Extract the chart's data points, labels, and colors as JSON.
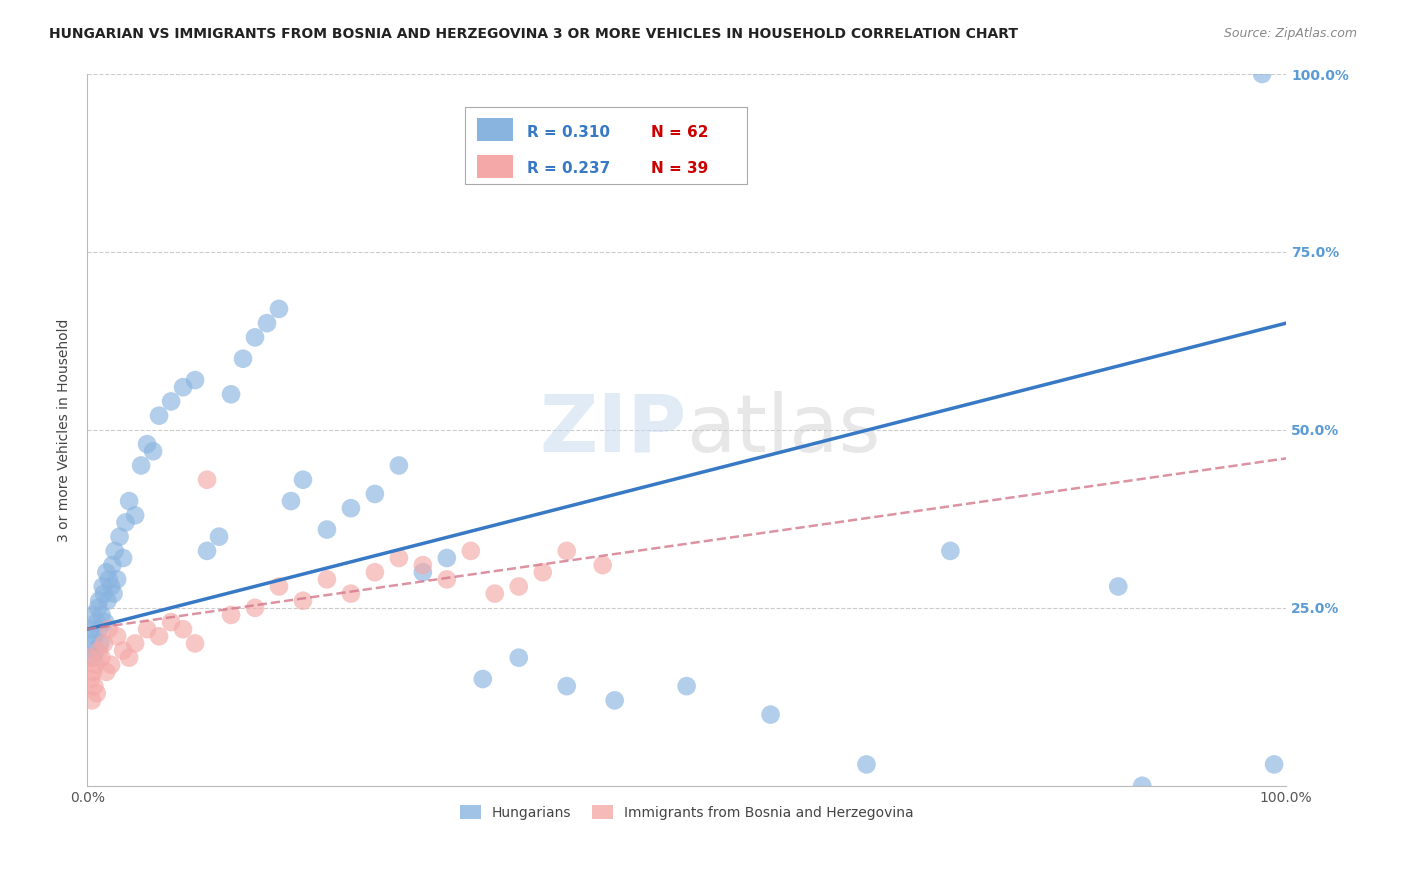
{
  "title": "HUNGARIAN VS IMMIGRANTS FROM BOSNIA AND HERZEGOVINA 3 OR MORE VEHICLES IN HOUSEHOLD CORRELATION CHART",
  "source": "Source: ZipAtlas.com",
  "ylabel": "3 or more Vehicles in Household",
  "blue_color": "#8ab4e0",
  "pink_color": "#f4a9a8",
  "blue_line_color": "#3879c5",
  "pink_line_color": "#d4788a",
  "right_axis_color": "#5b9bd5",
  "background_color": "#ffffff",
  "grid_color": "#cccccc",
  "blue_R": 0.31,
  "blue_N": 62,
  "pink_R": 0.237,
  "pink_N": 39,
  "blue_line_x": [
    0,
    100
  ],
  "blue_line_y": [
    22,
    65
  ],
  "pink_line_x": [
    0,
    100
  ],
  "pink_line_y": [
    22,
    46
  ],
  "blue_points_x": [
    0.3,
    0.4,
    0.5,
    0.5,
    0.6,
    0.7,
    0.8,
    0.9,
    1.0,
    1.0,
    1.1,
    1.2,
    1.3,
    1.4,
    1.5,
    1.6,
    1.7,
    1.8,
    2.0,
    2.1,
    2.2,
    2.3,
    2.5,
    2.7,
    3.0,
    3.2,
    3.5,
    4.0,
    4.5,
    5.0,
    5.5,
    6.0,
    7.0,
    8.0,
    9.0,
    10.0,
    11.0,
    12.0,
    13.0,
    14.0,
    15.0,
    16.0,
    17.0,
    18.0,
    20.0,
    22.0,
    24.0,
    26.0,
    28.0,
    30.0,
    33.0,
    36.0,
    40.0,
    44.0,
    50.0,
    57.0,
    65.0,
    72.0,
    86.0,
    88.0,
    98.0,
    99.0
  ],
  "blue_points_y": [
    22,
    20,
    18,
    24,
    21,
    19,
    23,
    25,
    22,
    26,
    20,
    24,
    28,
    27,
    23,
    30,
    26,
    29,
    28,
    31,
    27,
    33,
    29,
    35,
    32,
    37,
    40,
    38,
    45,
    48,
    47,
    52,
    54,
    56,
    57,
    33,
    35,
    55,
    60,
    63,
    65,
    67,
    40,
    43,
    36,
    39,
    41,
    45,
    30,
    32,
    15,
    18,
    14,
    12,
    14,
    10,
    3,
    33,
    28,
    0,
    100,
    3
  ],
  "pink_points_x": [
    0.2,
    0.3,
    0.4,
    0.5,
    0.6,
    0.7,
    0.8,
    1.0,
    1.2,
    1.4,
    1.6,
    1.8,
    2.0,
    2.5,
    3.0,
    3.5,
    4.0,
    5.0,
    6.0,
    7.0,
    8.0,
    9.0,
    10.0,
    12.0,
    14.0,
    16.0,
    18.0,
    20.0,
    22.0,
    24.0,
    26.0,
    28.0,
    30.0,
    32.0,
    34.0,
    36.0,
    38.0,
    40.0,
    43.0
  ],
  "pink_points_y": [
    18,
    15,
    12,
    16,
    14,
    17,
    13,
    19,
    18,
    20,
    16,
    22,
    17,
    21,
    19,
    18,
    20,
    22,
    21,
    23,
    22,
    20,
    43,
    24,
    25,
    28,
    26,
    29,
    27,
    30,
    32,
    31,
    29,
    33,
    27,
    28,
    30,
    33,
    31
  ],
  "xlim": [
    0,
    100
  ],
  "ylim": [
    0,
    100
  ]
}
